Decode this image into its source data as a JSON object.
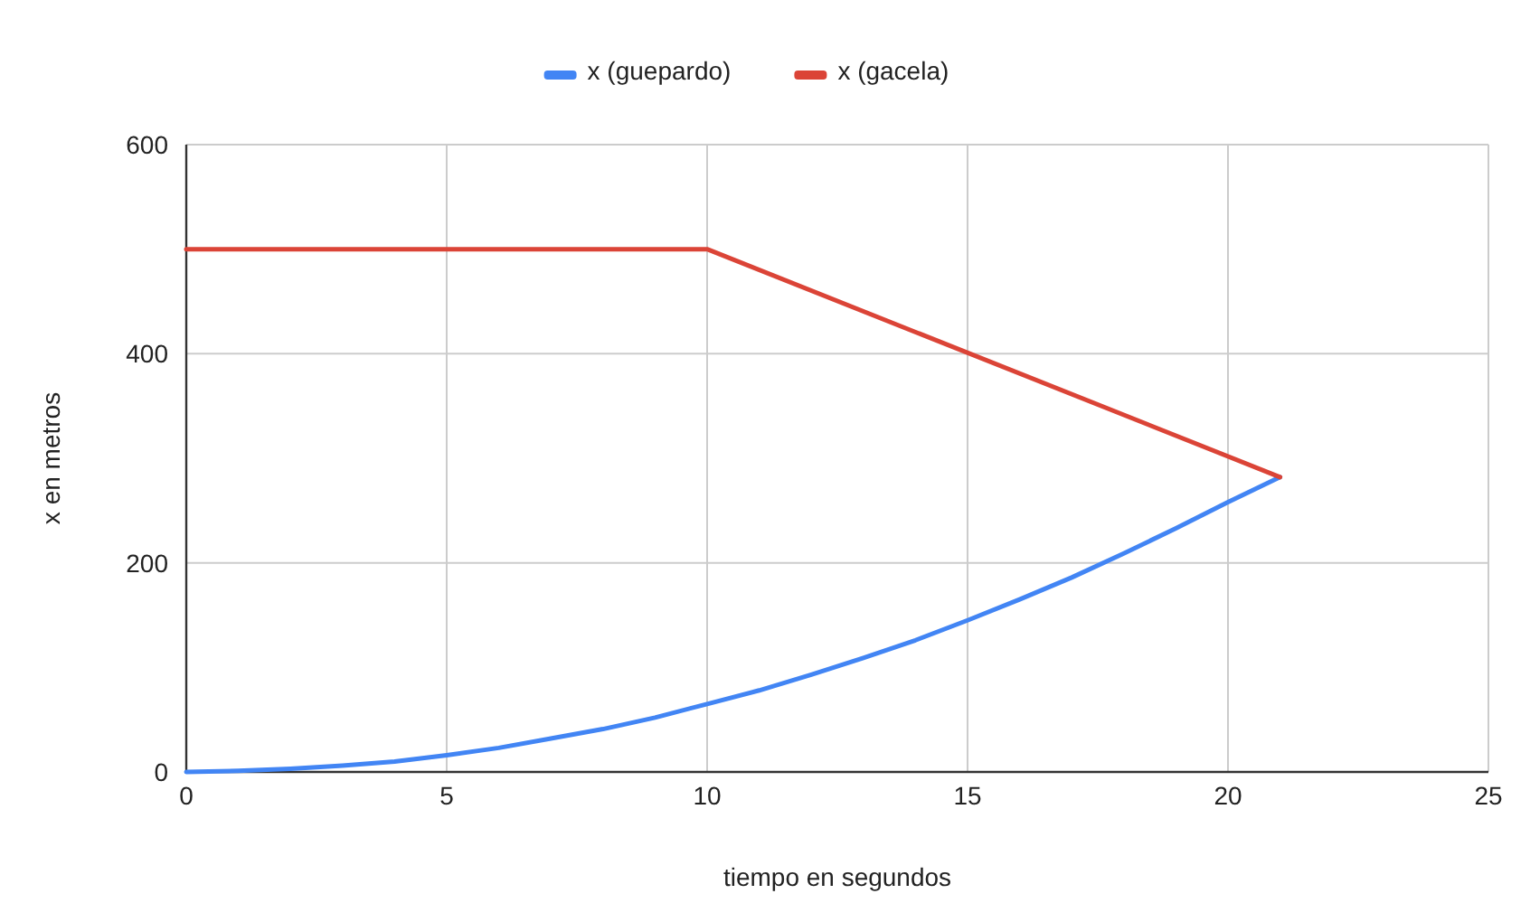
{
  "chart_data": {
    "type": "line",
    "xlabel": "tiempo en segundos",
    "ylabel": "x en metros",
    "xlim": [
      0,
      25
    ],
    "xticks": [
      0,
      5,
      10,
      15,
      20,
      25
    ],
    "ylim": [
      0,
      600
    ],
    "yticks": [
      0,
      200,
      400,
      600
    ],
    "grid": true,
    "legend": "top",
    "marker": "none",
    "line_style": "solid",
    "series": [
      {
        "name": "x (guepardo)",
        "color": "#4285f4",
        "x": [
          0,
          1,
          2,
          3,
          4,
          5,
          6,
          7,
          8,
          9,
          10,
          11,
          12,
          13,
          14,
          15,
          16,
          17,
          18,
          19,
          20,
          21
        ],
        "values": [
          0,
          1,
          3,
          6,
          10,
          16,
          23,
          32,
          41,
          52,
          65,
          78,
          93,
          109,
          126,
          145,
          165,
          186,
          209,
          233,
          258,
          282
        ]
      },
      {
        "name": "x (gacela)",
        "color": "#db4437",
        "x": [
          0,
          10,
          21
        ],
        "values": [
          500,
          500,
          282
        ]
      }
    ]
  }
}
